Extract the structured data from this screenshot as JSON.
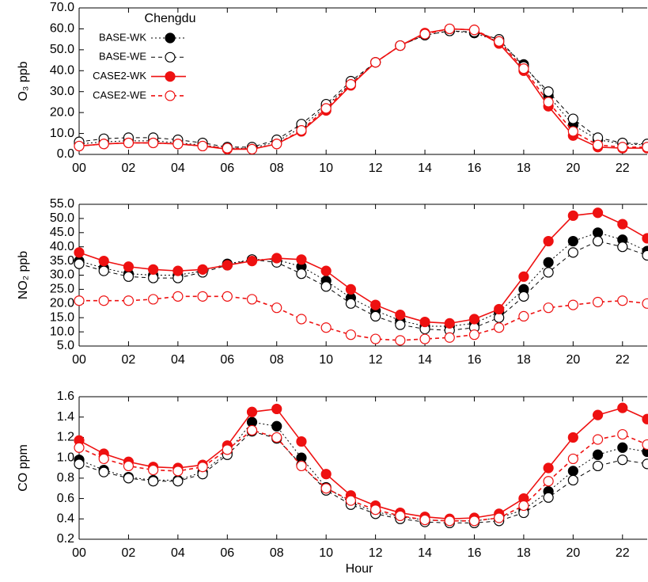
{
  "chart_data": [
    {
      "type": "line",
      "ylabel": "O₃ ppb",
      "legend": true,
      "legend_title": "Chengdu",
      "legend_position": "upper left",
      "x": [
        0,
        1,
        2,
        3,
        4,
        5,
        6,
        7,
        8,
        9,
        10,
        11,
        12,
        13,
        14,
        15,
        16,
        17,
        18,
        19,
        20,
        21,
        22,
        23
      ],
      "xlim": [
        0,
        23
      ],
      "xticks": [
        {
          "value": 0,
          "label": "00"
        },
        {
          "value": 2,
          "label": "02"
        },
        {
          "value": 4,
          "label": "04"
        },
        {
          "value": 6,
          "label": "06"
        },
        {
          "value": 8,
          "label": "08"
        },
        {
          "value": 10,
          "label": "10"
        },
        {
          "value": 12,
          "label": "12"
        },
        {
          "value": 14,
          "label": "14"
        },
        {
          "value": 16,
          "label": "16"
        },
        {
          "value": 18,
          "label": "18"
        },
        {
          "value": 20,
          "label": "20"
        },
        {
          "value": 22,
          "label": "22"
        }
      ],
      "ylim": [
        0,
        70
      ],
      "yticks": [
        {
          "value": 0,
          "label": "0.0"
        },
        {
          "value": 10,
          "label": "10.0"
        },
        {
          "value": 20,
          "label": "20.0"
        },
        {
          "value": 30,
          "label": "30.0"
        },
        {
          "value": 40,
          "label": "40.0"
        },
        {
          "value": 50,
          "label": "50.0"
        },
        {
          "value": 60,
          "label": "60.0"
        },
        {
          "value": 70,
          "label": "70.0"
        }
      ],
      "series": [
        {
          "name": "BASE-WK",
          "color": "#000000",
          "marker": "filled",
          "dash": "2,3",
          "values": [
            5,
            6,
            6.5,
            6.5,
            5.5,
            4.5,
            3,
            3,
            6,
            13,
            23,
            34,
            44,
            52,
            57,
            59,
            58,
            54,
            43,
            28,
            14,
            7,
            5,
            4.5
          ]
        },
        {
          "name": "BASE-WE",
          "color": "#000000",
          "marker": "open",
          "dash": "5,4",
          "values": [
            6,
            7.5,
            8,
            8,
            7,
            5.5,
            3.5,
            3.5,
            7,
            14.5,
            24,
            35,
            44,
            52,
            57,
            59,
            58.5,
            55,
            42,
            30,
            17,
            8,
            5.5,
            5
          ]
        },
        {
          "name": "CASE2-WK",
          "color": "#ee1111",
          "marker": "filled",
          "dash": "none",
          "values": [
            4,
            5,
            5.5,
            5.5,
            5,
            4,
            2.5,
            2.5,
            5,
            11,
            21,
            33,
            44,
            52,
            58,
            60,
            59.5,
            53,
            40,
            23,
            9,
            3.5,
            3,
            3
          ]
        },
        {
          "name": "CASE2-WE",
          "color": "#ee1111",
          "marker": "open",
          "dash": "5,4",
          "values": [
            4,
            5,
            5.5,
            5.5,
            5,
            4,
            3,
            2.5,
            5,
            11.5,
            22,
            33.5,
            44,
            52,
            57.5,
            60,
            59.5,
            54,
            41,
            25,
            11,
            4.5,
            3.5,
            3.5
          ]
        }
      ]
    },
    {
      "type": "line",
      "ylabel": "NO₂ ppb",
      "legend": false,
      "x": [
        0,
        1,
        2,
        3,
        4,
        5,
        6,
        7,
        8,
        9,
        10,
        11,
        12,
        13,
        14,
        15,
        16,
        17,
        18,
        19,
        20,
        21,
        22,
        23
      ],
      "xlim": [
        0,
        23
      ],
      "xticks": [
        {
          "value": 0,
          "label": "00"
        },
        {
          "value": 2,
          "label": "02"
        },
        {
          "value": 4,
          "label": "04"
        },
        {
          "value": 6,
          "label": "06"
        },
        {
          "value": 8,
          "label": "08"
        },
        {
          "value": 10,
          "label": "10"
        },
        {
          "value": 12,
          "label": "12"
        },
        {
          "value": 14,
          "label": "14"
        },
        {
          "value": 16,
          "label": "16"
        },
        {
          "value": 18,
          "label": "18"
        },
        {
          "value": 20,
          "label": "20"
        },
        {
          "value": 22,
          "label": "22"
        }
      ],
      "ylim": [
        5,
        55
      ],
      "yticks": [
        {
          "value": 5,
          "label": "5.0"
        },
        {
          "value": 10,
          "label": "10.0"
        },
        {
          "value": 15,
          "label": "15.0"
        },
        {
          "value": 20,
          "label": "20.0"
        },
        {
          "value": 25,
          "label": "25.0"
        },
        {
          "value": 30,
          "label": "30.0"
        },
        {
          "value": 35,
          "label": "35.0"
        },
        {
          "value": 40,
          "label": "40.0"
        },
        {
          "value": 45,
          "label": "45.0"
        },
        {
          "value": 50,
          "label": "50.0"
        },
        {
          "value": 55,
          "label": "55.0"
        }
      ],
      "series": [
        {
          "color": "#000000",
          "marker": "filled",
          "dash": "2,3",
          "values": [
            35,
            32.5,
            30.5,
            30,
            30,
            31.5,
            34,
            35.5,
            35.5,
            33,
            28,
            22,
            17.5,
            14,
            12,
            12,
            13,
            17,
            25,
            34.5,
            42,
            45,
            42.5,
            38.5
          ]
        },
        {
          "color": "#000000",
          "marker": "open",
          "dash": "5,4",
          "values": [
            34,
            31.5,
            29.5,
            29,
            29,
            31,
            33.5,
            35.5,
            34.5,
            30.5,
            26,
            20,
            15.5,
            12.5,
            11,
            10.5,
            11.5,
            15,
            22.5,
            31,
            38,
            42,
            40,
            37
          ]
        },
        {
          "color": "#ee1111",
          "marker": "filled",
          "dash": "none",
          "values": [
            38,
            35,
            33,
            32,
            31.5,
            32,
            33.5,
            35,
            36,
            35.5,
            31.5,
            25,
            19.5,
            16,
            13.5,
            13,
            14.5,
            18,
            29.5,
            42,
            51,
            52,
            48,
            43
          ]
        },
        {
          "color": "#ee1111",
          "marker": "open",
          "dash": "5,4",
          "values": [
            21,
            21,
            21,
            21.5,
            22.5,
            22.5,
            22.5,
            21.5,
            18.5,
            14.5,
            11.5,
            9,
            7.5,
            7,
            7.5,
            8,
            9,
            11.5,
            15.5,
            18.5,
            19.5,
            20.5,
            21,
            20
          ]
        }
      ]
    },
    {
      "type": "line",
      "ylabel": "CO ppm",
      "xlabel": "Hour",
      "legend": false,
      "x": [
        0,
        1,
        2,
        3,
        4,
        5,
        6,
        7,
        8,
        9,
        10,
        11,
        12,
        13,
        14,
        15,
        16,
        17,
        18,
        19,
        20,
        21,
        22,
        23
      ],
      "xlim": [
        0,
        23
      ],
      "xticks": [
        {
          "value": 0,
          "label": "00"
        },
        {
          "value": 2,
          "label": "02"
        },
        {
          "value": 4,
          "label": "04"
        },
        {
          "value": 6,
          "label": "06"
        },
        {
          "value": 8,
          "label": "08"
        },
        {
          "value": 10,
          "label": "10"
        },
        {
          "value": 12,
          "label": "12"
        },
        {
          "value": 14,
          "label": "14"
        },
        {
          "value": 16,
          "label": "16"
        },
        {
          "value": 18,
          "label": "18"
        },
        {
          "value": 20,
          "label": "20"
        },
        {
          "value": 22,
          "label": "22"
        }
      ],
      "ylim": [
        0.2,
        1.6
      ],
      "yticks": [
        0.2,
        0.4,
        0.6,
        0.8,
        {
          "value": 1,
          "label": "1.0"
        },
        1.2,
        1.4,
        1.6
      ],
      "series": [
        {
          "color": "#000000",
          "marker": "filled",
          "dash": "2,3",
          "values": [
            0.98,
            0.88,
            0.81,
            0.78,
            0.78,
            0.86,
            1.05,
            1.35,
            1.31,
            1.0,
            0.71,
            0.56,
            0.47,
            0.42,
            0.39,
            0.38,
            0.38,
            0.41,
            0.49,
            0.67,
            0.87,
            1.03,
            1.1,
            1.06
          ]
        },
        {
          "color": "#000000",
          "marker": "open",
          "dash": "5,4",
          "values": [
            0.94,
            0.86,
            0.8,
            0.77,
            0.77,
            0.84,
            1.03,
            1.26,
            1.19,
            0.93,
            0.68,
            0.54,
            0.45,
            0.4,
            0.37,
            0.36,
            0.36,
            0.38,
            0.46,
            0.61,
            0.78,
            0.92,
            0.98,
            0.94
          ]
        },
        {
          "color": "#ee1111",
          "marker": "filled",
          "dash": "none",
          "values": [
            1.17,
            1.04,
            0.96,
            0.91,
            0.9,
            0.93,
            1.12,
            1.45,
            1.48,
            1.16,
            0.84,
            0.63,
            0.53,
            0.46,
            0.42,
            0.4,
            0.41,
            0.45,
            0.6,
            0.9,
            1.2,
            1.42,
            1.49,
            1.38
          ]
        },
        {
          "color": "#ee1111",
          "marker": "open",
          "dash": "5,4",
          "values": [
            1.1,
            0.99,
            0.92,
            0.88,
            0.87,
            0.91,
            1.08,
            1.27,
            1.2,
            0.92,
            0.7,
            0.58,
            0.49,
            0.43,
            0.39,
            0.38,
            0.38,
            0.41,
            0.53,
            0.77,
            0.99,
            1.18,
            1.23,
            1.13
          ]
        }
      ]
    }
  ]
}
